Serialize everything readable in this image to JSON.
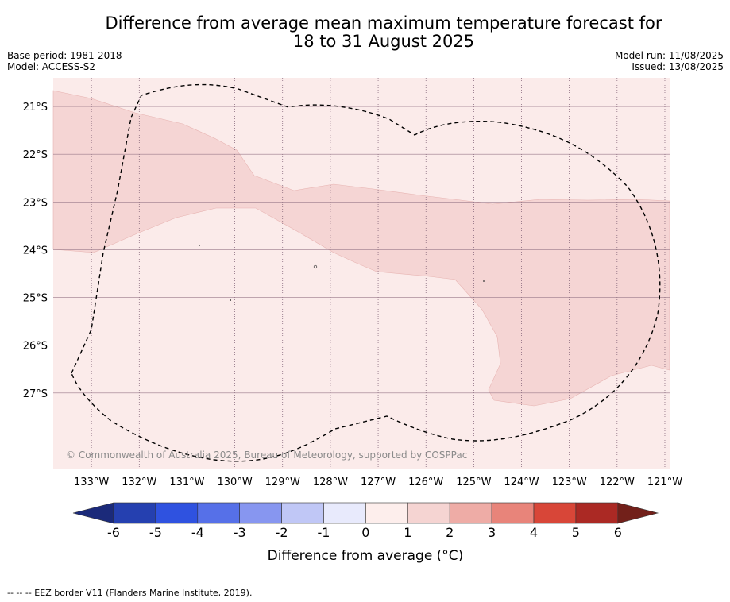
{
  "title_line1": "Difference from average mean maximum temperature forecast for",
  "title_line2": "18 to 31 August 2025",
  "base_period": "Base period: 1981-2018",
  "model": "Model: ACCESS-S2",
  "model_run": "Model run: 11/08/2025",
  "issued": "Issued: 13/08/2025",
  "copyright": "© Commonwealth of Australia 2025, Bureau of Meteorology, supported by COSPPac",
  "footnote": "-- -- -- EEZ border V11 (Flanders Marine Institute, 2019).",
  "map": {
    "lon_labels": [
      "133°W",
      "132°W",
      "131°W",
      "130°W",
      "129°W",
      "128°W",
      "127°W",
      "126°W",
      "125°W",
      "124°W",
      "123°W",
      "122°W",
      "121°W"
    ],
    "lat_labels": [
      "21°S",
      "22°S",
      "23°S",
      "24°S",
      "25°S",
      "26°S",
      "27°S"
    ],
    "lon_range": [
      -133.8,
      -120.9
    ],
    "lat_range": [
      -28.6,
      -20.4
    ],
    "background_class": "0 to 1",
    "shaded_class": "1 to 2",
    "eez_border_style": "dashed"
  },
  "colorbar": {
    "title": "Difference from average (°C)",
    "ticks": [
      "-6",
      "-5",
      "-4",
      "-3",
      "-2",
      "-1",
      "0",
      "1",
      "2",
      "3",
      "4",
      "5",
      "6"
    ],
    "colors": [
      "#1b2a7a",
      "#2540b0",
      "#2f52e0",
      "#5670e8",
      "#8796f0",
      "#c0c7f6",
      "#e8eafc",
      "#fdeeec",
      "#f5d4d2",
      "#eeaca6",
      "#e8847a",
      "#d84638",
      "#ab2924",
      "#72201a"
    ]
  }
}
